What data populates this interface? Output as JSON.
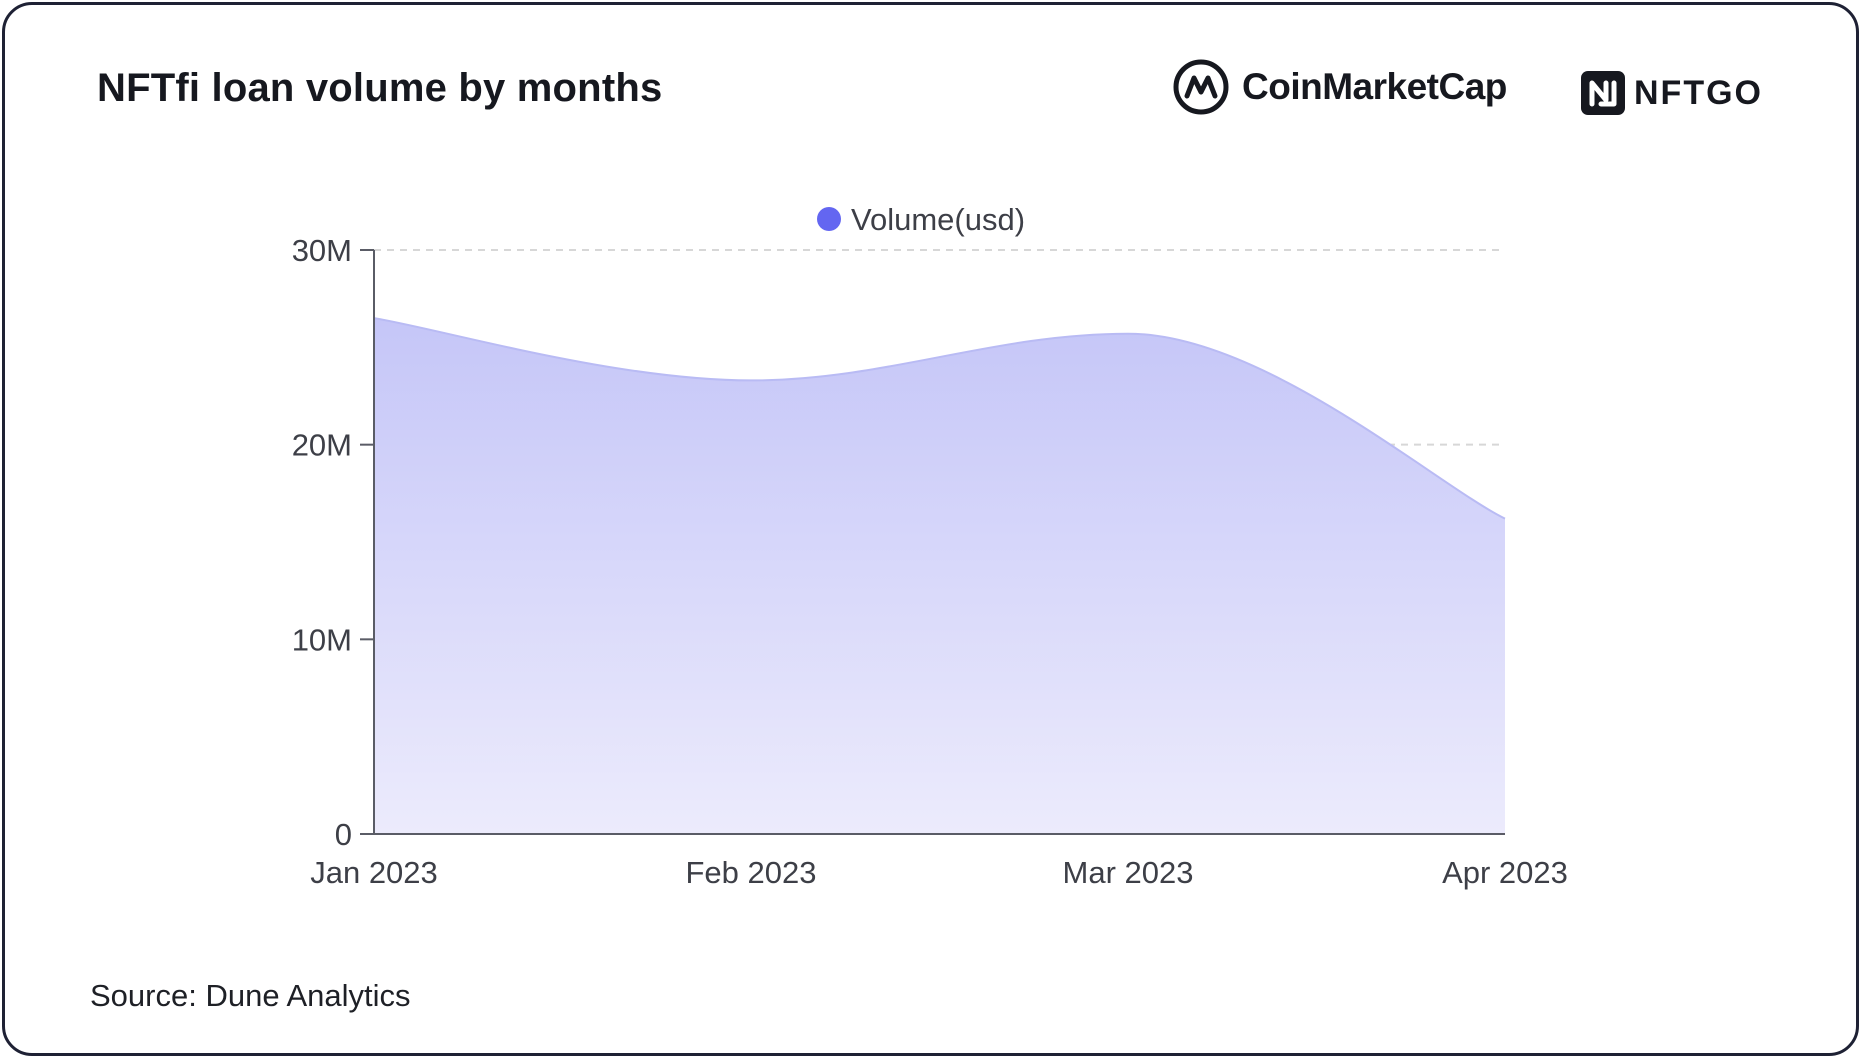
{
  "header": {
    "title": "NFTfi loan volume by months",
    "brand_1": {
      "name": "CoinMarketCap",
      "icon": "coinmarketcap-logo-icon"
    },
    "brand_2": {
      "name": "NFTGO",
      "icon": "nftgo-logo-icon"
    }
  },
  "footer": {
    "source": "Source: Dune Analytics"
  },
  "colors": {
    "series": "#6366f1",
    "area_top": "#c5c6f8",
    "area_bottom": "#ecebfc",
    "axis": "#5a5c66",
    "grid": "#d7d7d7"
  },
  "chart_data": {
    "type": "area",
    "categories": [
      "Jan 2023",
      "Feb 2023",
      "Mar 2023",
      "Apr 2023"
    ],
    "series": [
      {
        "name": "Volume(usd)",
        "values": [
          26500000,
          23300000,
          25700000,
          16200000
        ]
      }
    ],
    "y_ticks": [
      0,
      10000000,
      20000000,
      30000000
    ],
    "y_tick_labels": [
      "0",
      "10M",
      "20M",
      "30M"
    ],
    "ylim": [
      0,
      30000000
    ],
    "grid": true,
    "legend_position": "top-center",
    "smooth": true
  }
}
